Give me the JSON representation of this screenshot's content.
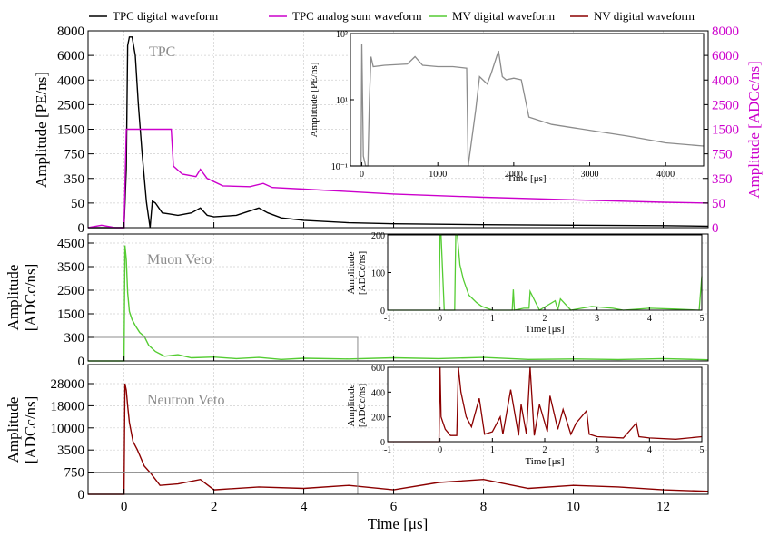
{
  "colors": {
    "tpc": "#000000",
    "tpc_sum": "#cc00cc",
    "mv": "#55cc33",
    "nv": "#8b0000",
    "panel_label": "#8c8c8c",
    "inset_tpc": "#8c8c8c",
    "grid": "#cccccc"
  },
  "legend": [
    {
      "label": "TPC digital waveform",
      "color": "#000000"
    },
    {
      "label": "TPC analog sum waveform",
      "color": "#cc00cc"
    },
    {
      "label": "MV digital waveform",
      "color": "#55cc33"
    },
    {
      "label": "NV digital waveform",
      "color": "#8b0000"
    }
  ],
  "chart_data": [
    {
      "type": "line",
      "panel": "TPC",
      "panel_label": "TPC",
      "xlim": [
        -0.8,
        13.0
      ],
      "xlabel": "Time [μs]",
      "xticks": [
        0,
        2,
        4,
        6,
        8,
        10,
        12
      ],
      "ylabel": "Amplitude [PE/ns]",
      "yticks": [
        0,
        50,
        350,
        750,
        1500,
        2500,
        4000,
        6000,
        8000
      ],
      "y2label": "Amplitude [ADCc/ns]",
      "y2ticks": [
        0,
        50,
        350,
        750,
        1500,
        2500,
        4000,
        6000,
        8000
      ],
      "yscale": "symlog-like",
      "series": [
        {
          "name": "TPC digital waveform",
          "color": "#000000",
          "x": [
            -0.8,
            0.0,
            0.05,
            0.08,
            0.12,
            0.18,
            0.25,
            0.32,
            0.4,
            0.5,
            0.58,
            0.63,
            0.7,
            0.85,
            1.0,
            1.2,
            1.5,
            1.7,
            1.85,
            2.0,
            2.5,
            3.0,
            3.2,
            3.5,
            4.0,
            5.0,
            6.0,
            8.0,
            10.0,
            12.0,
            13.0
          ],
          "y": [
            0,
            0,
            500,
            6800,
            7500,
            7500,
            6000,
            2500,
            800,
            60,
            0,
            75,
            50,
            30,
            28,
            25,
            30,
            40,
            25,
            22,
            25,
            40,
            30,
            20,
            15,
            10,
            8,
            6,
            5,
            4,
            3
          ]
        },
        {
          "name": "TPC analog sum waveform",
          "color": "#cc00cc",
          "x": [
            -0.8,
            -0.5,
            -0.2,
            0.0,
            0.05,
            0.08,
            1.05,
            1.1,
            1.3,
            1.6,
            1.7,
            1.85,
            2.2,
            2.8,
            3.1,
            3.3,
            4.0,
            5.0,
            6.0,
            8.0,
            10.0,
            12.0,
            13.0
          ],
          "y": [
            0,
            5,
            0,
            0,
            1500,
            1500,
            1500,
            550,
            420,
            380,
            500,
            350,
            260,
            250,
            290,
            240,
            220,
            190,
            160,
            120,
            90,
            60,
            50
          ]
        }
      ],
      "inset": {
        "xlabel": "Time [μs]",
        "ylabel": "Amplitude [PE/ns]",
        "xlim": [
          -150,
          4500
        ],
        "xticks": [
          0,
          1000,
          2000,
          3000,
          4000
        ],
        "yscale": "log",
        "ylim": [
          0.1,
          1000
        ],
        "ytick_labels": [
          "10⁻¹",
          "10¹",
          "10³"
        ],
        "series": {
          "color": "#8c8c8c",
          "x": [
            -150,
            -10,
            0,
            20,
            50,
            80,
            100,
            120,
            150,
            300,
            600,
            700,
            800,
            1000,
            1200,
            1380,
            1400,
            1500,
            1550,
            1650,
            1700,
            1800,
            1850,
            1900,
            2000,
            2100,
            2200,
            2500,
            3000,
            3500,
            4000,
            4500
          ],
          "y": [
            0.1,
            0.1,
            500,
            0.2,
            0.1,
            0.1,
            10,
            200,
            100,
            110,
            120,
            200,
            110,
            100,
            100,
            90,
            0.1,
            5,
            50,
            30,
            60,
            300,
            50,
            40,
            45,
            40,
            3,
            1.8,
            1.2,
            0.8,
            0.5,
            0.4
          ]
        }
      }
    },
    {
      "type": "line",
      "panel": "Muon Veto",
      "panel_label": "Muon Veto",
      "ylabel": "Amplitude [ADCc/ns]",
      "yticks": [
        0,
        300,
        1500,
        2500,
        3500,
        4500
      ],
      "series": [
        {
          "name": "MV digital waveform",
          "color": "#55cc33",
          "x": [
            -0.8,
            0.0,
            0.02,
            0.05,
            0.08,
            0.12,
            0.18,
            0.25,
            0.35,
            0.45,
            0.55,
            0.7,
            0.9,
            1.2,
            1.5,
            2.0,
            2.5,
            3.0,
            3.5,
            4.0,
            5.0,
            6.0,
            7.0,
            8.0,
            9.0,
            10.0,
            11.0,
            12.0,
            13.0
          ],
          "y": [
            0,
            0,
            4400,
            3800,
            2400,
            1600,
            1200,
            900,
            550,
            350,
            200,
            120,
            60,
            80,
            40,
            50,
            30,
            45,
            20,
            35,
            25,
            40,
            30,
            45,
            20,
            25,
            18,
            30,
            15
          ]
        }
      ],
      "zoom_box": {
        "x_range": [
          -0.8,
          5.2
        ],
        "y_range": [
          0,
          300
        ]
      },
      "inset": {
        "xlabel": "Time [μs]",
        "ylabel": "Amplitude [ADCc/ns]",
        "xlim": [
          -1,
          5
        ],
        "xticks": [
          -1,
          0,
          1,
          2,
          3,
          4,
          5
        ],
        "ylim": [
          0,
          200
        ],
        "yticks": [
          0,
          100,
          200
        ],
        "series": {
          "color": "#55cc33",
          "x": [
            -1,
            -0.02,
            0.0,
            0.02,
            0.08,
            0.28,
            0.3,
            0.33,
            0.38,
            0.45,
            0.55,
            0.7,
            0.8,
            1.0,
            1.38,
            1.4,
            1.42,
            1.6,
            1.7,
            1.72,
            1.9,
            2.2,
            2.25,
            2.3,
            2.5,
            2.9,
            3.3,
            3.5,
            4.0,
            4.5,
            4.95,
            5.0
          ],
          "y": [
            0,
            0,
            200,
            200,
            0,
            0,
            200,
            200,
            120,
            80,
            40,
            20,
            10,
            0,
            0,
            55,
            0,
            5,
            5,
            50,
            0,
            25,
            0,
            30,
            0,
            10,
            5,
            0,
            5,
            3,
            0,
            90
          ]
        }
      }
    },
    {
      "type": "line",
      "panel": "Neutron Veto",
      "panel_label": "Neutron Veto",
      "ylabel": "Amplitude [ADCc/ns]",
      "yticks": [
        0,
        750,
        3500,
        10000,
        18000,
        28000
      ],
      "series": [
        {
          "name": "NV digital waveform",
          "color": "#8b0000",
          "x": [
            -0.8,
            0.0,
            0.02,
            0.05,
            0.08,
            0.12,
            0.2,
            0.3,
            0.45,
            0.6,
            0.8,
            1.2,
            1.7,
            2.0,
            3.0,
            4.0,
            5.0,
            6.0,
            7.0,
            8.0,
            9.0,
            10.0,
            11.0,
            12.0,
            13.0
          ],
          "y": [
            0,
            0,
            29000,
            25000,
            18000,
            12000,
            6000,
            3500,
            1500,
            700,
            300,
            350,
            500,
            150,
            250,
            200,
            300,
            150,
            400,
            500,
            200,
            300,
            250,
            150,
            100
          ]
        }
      ],
      "zoom_box": {
        "x_range": [
          -0.8,
          5.2
        ],
        "y_range": [
          0,
          750
        ]
      },
      "inset": {
        "xlabel": "Time [μs]",
        "ylabel": "Amplitude [ADCc/ns]",
        "xlim": [
          -1,
          5
        ],
        "xticks": [
          -1,
          0,
          1,
          2,
          3,
          4,
          5
        ],
        "ylim": [
          0,
          600
        ],
        "yticks": [
          0,
          200,
          400,
          600
        ],
        "series": {
          "color": "#8b0000",
          "x": [
            -1,
            -0.02,
            0.0,
            0.02,
            0.1,
            0.2,
            0.32,
            0.35,
            0.4,
            0.5,
            0.6,
            0.75,
            0.85,
            1.0,
            1.15,
            1.2,
            1.35,
            1.5,
            1.55,
            1.65,
            1.72,
            1.8,
            1.9,
            2.05,
            2.1,
            2.25,
            2.35,
            2.5,
            2.6,
            2.8,
            2.85,
            3.0,
            3.5,
            3.75,
            3.8,
            4.0,
            4.5,
            5.0
          ],
          "y": [
            0,
            0,
            600,
            200,
            100,
            50,
            50,
            600,
            400,
            200,
            120,
            350,
            60,
            80,
            200,
            60,
            420,
            50,
            300,
            60,
            600,
            50,
            300,
            80,
            370,
            100,
            260,
            60,
            150,
            250,
            60,
            40,
            30,
            150,
            40,
            30,
            20,
            40
          ]
        }
      }
    }
  ]
}
